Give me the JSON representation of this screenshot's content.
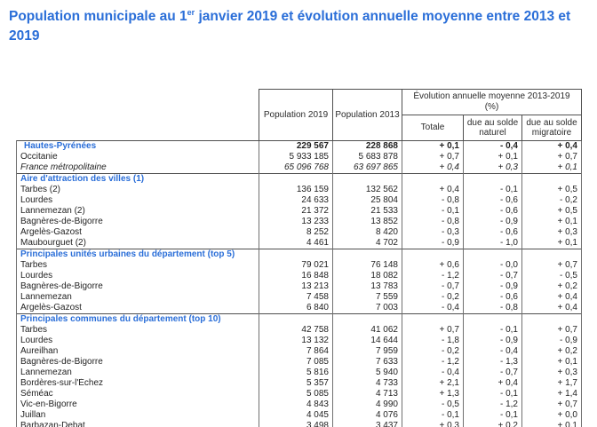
{
  "colors": {
    "accent_blue": "#2a6ed8",
    "text": "#1f1f1f",
    "border_inner": "#707070",
    "border_strong": "#4f4f4f",
    "background": "#ffffff"
  },
  "title": {
    "text_before_sup": "Population municipale au 1",
    "sup": "er",
    "text_after_sup": " janvier 2019 et évolution annuelle moyenne entre 2013 et 2019"
  },
  "table": {
    "column_headers": {
      "population_2019": "Population 2019",
      "population_2013": "Population 2013",
      "evolution_group_line1": "Évolution annuelle moyenne 2013-2019",
      "evolution_group_line2": "(%)",
      "totale": "Totale",
      "solde_naturel": "due au solde naturel",
      "solde_migratoire": "due au solde migratoire"
    },
    "rows": [
      {
        "style": "highlight",
        "separator": false,
        "label": "Hautes-Pyrénées",
        "pop2019": "229 567",
        "pop2013": "228 868",
        "totale": "+ 0,1",
        "naturel": "- 0,4",
        "migratoire": "+ 0,4"
      },
      {
        "style": "normal",
        "separator": false,
        "label": "Occitanie",
        "pop2019": "5 933 185",
        "pop2013": "5 683 878",
        "totale": "+ 0,7",
        "naturel": "+ 0,1",
        "migratoire": "+ 0,7"
      },
      {
        "style": "italic",
        "separator": false,
        "label": "France métropolitaine",
        "pop2019": "65 096 768",
        "pop2013": "63 697 865",
        "totale": "+ 0,4",
        "naturel": "+ 0,3",
        "migratoire": "+ 0,1"
      },
      {
        "style": "section",
        "separator": true,
        "label": "Aire d'attraction des villes (1)",
        "pop2019": "",
        "pop2013": "",
        "totale": "",
        "naturel": "",
        "migratoire": ""
      },
      {
        "style": "normal",
        "separator": false,
        "label": "Tarbes (2)",
        "pop2019": "136 159",
        "pop2013": "132 562",
        "totale": "+ 0,4",
        "naturel": "- 0,1",
        "migratoire": "+ 0,5"
      },
      {
        "style": "normal",
        "separator": false,
        "label": "Lourdes",
        "pop2019": "24 633",
        "pop2013": "25 804",
        "totale": "- 0,8",
        "naturel": "- 0,6",
        "migratoire": "- 0,2"
      },
      {
        "style": "normal",
        "separator": false,
        "label": "Lannemezan (2)",
        "pop2019": "21 372",
        "pop2013": "21 533",
        "totale": "- 0,1",
        "naturel": "- 0,6",
        "migratoire": "+ 0,5"
      },
      {
        "style": "normal",
        "separator": false,
        "label": "Bagnères-de-Bigorre",
        "pop2019": "13 233",
        "pop2013": "13 852",
        "totale": "- 0,8",
        "naturel": "- 0,9",
        "migratoire": "+ 0,1"
      },
      {
        "style": "normal",
        "separator": false,
        "label": "Argelès-Gazost",
        "pop2019": "8 252",
        "pop2013": "8 420",
        "totale": "- 0,3",
        "naturel": "- 0,6",
        "migratoire": "+ 0,3"
      },
      {
        "style": "normal",
        "separator": false,
        "label": "Maubourguet (2)",
        "pop2019": "4 461",
        "pop2013": "4 702",
        "totale": "- 0,9",
        "naturel": "- 1,0",
        "migratoire": "+ 0,1"
      },
      {
        "style": "section",
        "separator": true,
        "label": "Principales unités urbaines du département (top 5)",
        "pop2019": "",
        "pop2013": "",
        "totale": "",
        "naturel": "",
        "migratoire": ""
      },
      {
        "style": "normal",
        "separator": false,
        "label": "Tarbes",
        "pop2019": "79 021",
        "pop2013": "76 148",
        "totale": "+ 0,6",
        "naturel": "- 0,0",
        "migratoire": "+ 0,7"
      },
      {
        "style": "normal",
        "separator": false,
        "label": "Lourdes",
        "pop2019": "16 848",
        "pop2013": "18 082",
        "totale": "- 1,2",
        "naturel": "- 0,7",
        "migratoire": "- 0,5"
      },
      {
        "style": "normal",
        "separator": false,
        "label": "Bagnères-de-Bigorre",
        "pop2019": "13 213",
        "pop2013": "13 783",
        "totale": "- 0,7",
        "naturel": "- 0,9",
        "migratoire": "+ 0,2"
      },
      {
        "style": "normal",
        "separator": false,
        "label": "Lannemezan",
        "pop2019": "7 458",
        "pop2013": "7 559",
        "totale": "- 0,2",
        "naturel": "- 0,6",
        "migratoire": "+ 0,4"
      },
      {
        "style": "normal",
        "separator": false,
        "label": "Argelès-Gazost",
        "pop2019": "6 840",
        "pop2013": "7 003",
        "totale": "- 0,4",
        "naturel": "- 0,8",
        "migratoire": "+ 0,4"
      },
      {
        "style": "section",
        "separator": true,
        "label": "Principales communes du département (top 10)",
        "pop2019": "",
        "pop2013": "",
        "totale": "",
        "naturel": "",
        "migratoire": ""
      },
      {
        "style": "normal",
        "separator": false,
        "label": "Tarbes",
        "pop2019": "42 758",
        "pop2013": "41 062",
        "totale": "+ 0,7",
        "naturel": "- 0,1",
        "migratoire": "+ 0,7"
      },
      {
        "style": "normal",
        "separator": false,
        "label": "Lourdes",
        "pop2019": "13 132",
        "pop2013": "14 644",
        "totale": "- 1,8",
        "naturel": "- 0,9",
        "migratoire": "- 0,9"
      },
      {
        "style": "normal",
        "separator": false,
        "label": "Aureilhan",
        "pop2019": "7 864",
        "pop2013": "7 959",
        "totale": "- 0,2",
        "naturel": "- 0,4",
        "migratoire": "+ 0,2"
      },
      {
        "style": "normal",
        "separator": false,
        "label": "Bagnères-de-Bigorre",
        "pop2019": "7 085",
        "pop2013": "7 633",
        "totale": "- 1,2",
        "naturel": "- 1,3",
        "migratoire": "+ 0,1"
      },
      {
        "style": "normal",
        "separator": false,
        "label": "Lannemezan",
        "pop2019": "5 816",
        "pop2013": "5 940",
        "totale": "- 0,4",
        "naturel": "- 0,7",
        "migratoire": "+ 0,3"
      },
      {
        "style": "normal",
        "separator": false,
        "label": "Bordères-sur-l'Échez",
        "pop2019": "5 357",
        "pop2013": "4 733",
        "totale": "+ 2,1",
        "naturel": "+ 0,4",
        "migratoire": "+ 1,7"
      },
      {
        "style": "normal",
        "separator": false,
        "label": "Séméac",
        "pop2019": "5 085",
        "pop2013": "4 713",
        "totale": "+ 1,3",
        "naturel": "- 0,1",
        "migratoire": "+ 1,4"
      },
      {
        "style": "normal",
        "separator": false,
        "label": "Vic-en-Bigorre",
        "pop2019": "4 843",
        "pop2013": "4 990",
        "totale": "- 0,5",
        "naturel": "- 1,2",
        "migratoire": "+ 0,7"
      },
      {
        "style": "normal",
        "separator": false,
        "label": "Juillan",
        "pop2019": "4 045",
        "pop2013": "4 076",
        "totale": "- 0,1",
        "naturel": "- 0,1",
        "migratoire": "+ 0,0"
      },
      {
        "style": "normal",
        "separator": false,
        "label": "Barbazan-Debat",
        "pop2019": "3 498",
        "pop2013": "3 437",
        "totale": "+ 0,3",
        "naturel": "+ 0,2",
        "migratoire": "+ 0,1"
      }
    ]
  }
}
